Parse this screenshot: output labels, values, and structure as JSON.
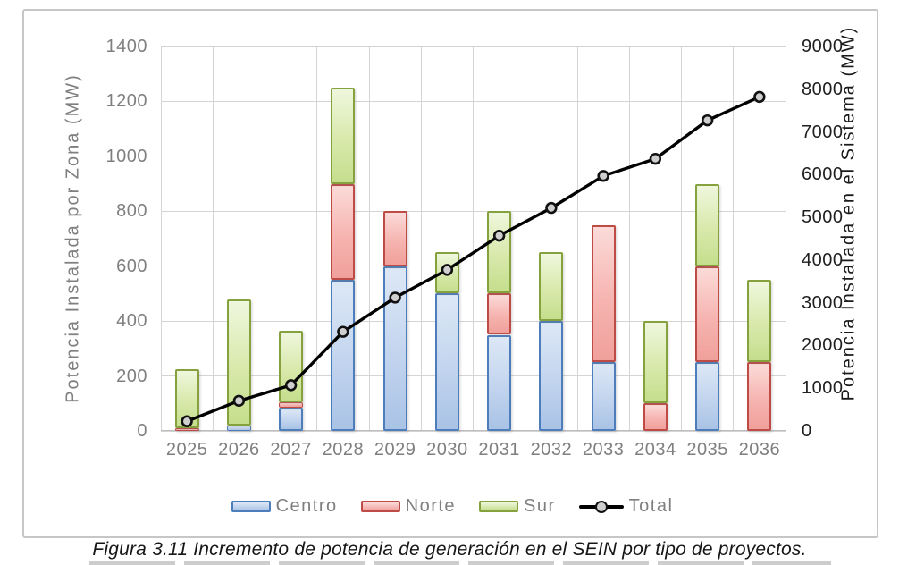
{
  "chart_data": {
    "type": "bar",
    "subtype": "stacked-bars-with-cumulative-line",
    "categories": [
      "2025",
      "2026",
      "2027",
      "2028",
      "2029",
      "2030",
      "2031",
      "2032",
      "2033",
      "2034",
      "2035",
      "2036"
    ],
    "series": [
      {
        "name": "Centro",
        "type": "bar",
        "axis": "left",
        "color": "#4d7dba",
        "values": [
          0,
          20,
          85,
          550,
          600,
          500,
          350,
          400,
          250,
          0,
          250,
          0
        ]
      },
      {
        "name": "Norte",
        "type": "bar",
        "axis": "left",
        "color": "#bf4b47",
        "values": [
          10,
          0,
          20,
          350,
          200,
          0,
          150,
          0,
          500,
          100,
          350,
          250
        ]
      },
      {
        "name": "Sur",
        "type": "bar",
        "axis": "left",
        "color": "#86a23f",
        "values": [
          215,
          460,
          260,
          350,
          0,
          150,
          300,
          250,
          0,
          300,
          300,
          300
        ]
      },
      {
        "name": "Total",
        "type": "line",
        "axis": "right",
        "color": "#000000",
        "values": [
          225,
          705,
          1070,
          2320,
          3120,
          3770,
          4570,
          5220,
          5970,
          6370,
          7270,
          7820
        ]
      }
    ],
    "left_axis": {
      "title": "Potencia Instalada por Zona (MW)",
      "min": 0,
      "max": 1400,
      "step": 200
    },
    "right_axis": {
      "title": "Potencia Instalada en el Sistema (MW)",
      "min": 0,
      "max": 9000,
      "step": 1000
    },
    "grid": "major horizontal and vertical, light gray",
    "legend_position": "bottom-center",
    "legend": [
      "Centro",
      "Norte",
      "Sur",
      "Total"
    ]
  },
  "caption": "Figura 3.11 Incremento de potencia de generación en el SEIN por tipo de proyectos.",
  "colors": {
    "centro_border": "#4d7dba",
    "centro_fill": "#c2d4ee",
    "norte_border": "#bf4b47",
    "norte_fill": "#f6b4b0",
    "sur_border": "#86a23f",
    "sur_fill": "#d8e9ab",
    "total_line": "#000000",
    "marker_fill": "#cfcfcf",
    "axis_text_left": "#7f7f7f",
    "axis_text_right": "#1f1f1f",
    "gridline": "#d4d4d4"
  }
}
